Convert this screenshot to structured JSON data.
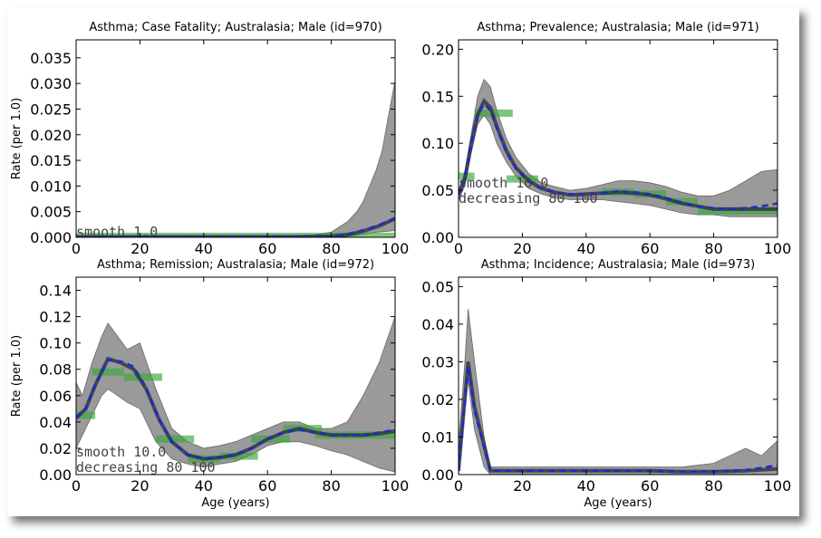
{
  "chart_data": [
    {
      "type": "line",
      "title": "Asthma; Case Fatality; Australasia; Male (id=970)",
      "xlabel": "",
      "ylabel": "Rate (per 1.0)",
      "xlim": [
        0,
        100
      ],
      "ylim": [
        0,
        0.0385
      ],
      "xticks": [
        0,
        20,
        40,
        60,
        80,
        100
      ],
      "xtick_labels": [
        "0",
        "20",
        "40",
        "60",
        "80",
        "100"
      ],
      "yticks": [
        0,
        0.005,
        0.01,
        0.015,
        0.02,
        0.025,
        0.03,
        0.035
      ],
      "ytick_labels": [
        "0.000",
        "0.005",
        "0.010",
        "0.015",
        "0.020",
        "0.025",
        "0.030",
        "0.035"
      ],
      "annotation": [
        "smooth 1.0"
      ],
      "band": {
        "x": [
          0,
          60,
          70,
          75,
          80,
          85,
          88,
          90,
          92,
          94,
          96,
          98,
          100
        ],
        "upper": [
          0.0002,
          0.0002,
          0.0003,
          0.0005,
          0.001,
          0.003,
          0.005,
          0.007,
          0.01,
          0.013,
          0.017,
          0.024,
          0.0305
        ],
        "lower": [
          0,
          0,
          0,
          0,
          0.0001,
          0.0002,
          0.0004,
          0.0006,
          0.0008,
          0.001,
          0.0011,
          0.0012,
          0.0013
        ]
      },
      "median": {
        "x": [
          0,
          70,
          80,
          85,
          90,
          95,
          100
        ],
        "y": [
          0.0001,
          0.0001,
          0.0002,
          0.0005,
          0.0012,
          0.0022,
          0.0036
        ]
      },
      "mean": {
        "x": [
          0,
          70,
          80,
          85,
          90,
          95,
          100
        ],
        "y": [
          0.0001,
          0.0001,
          0.0002,
          0.0006,
          0.0014,
          0.0024,
          0.0038
        ]
      },
      "data_bars": [
        {
          "x0": 0,
          "x1": 100,
          "y": 0.0002
        }
      ]
    },
    {
      "type": "line",
      "title": "Asthma; Prevalence; Australasia; Male (id=971)",
      "xlabel": "",
      "ylabel": "",
      "xlim": [
        0,
        100
      ],
      "ylim": [
        0,
        0.21
      ],
      "xticks": [
        0,
        20,
        40,
        60,
        80,
        100
      ],
      "xtick_labels": [
        "0",
        "20",
        "40",
        "60",
        "80",
        "100"
      ],
      "yticks": [
        0,
        0.05,
        0.1,
        0.15,
        0.2
      ],
      "ytick_labels": [
        "0.00",
        "0.05",
        "0.10",
        "0.15",
        "0.20"
      ],
      "annotation": [
        "smooth 10.0",
        "decreasing 80 100",
        ""
      ],
      "band": {
        "x": [
          0,
          2,
          4,
          6,
          8,
          10,
          12,
          15,
          18,
          22,
          26,
          30,
          35,
          40,
          45,
          50,
          55,
          60,
          65,
          70,
          75,
          80,
          85,
          90,
          95,
          100
        ],
        "upper": [
          0.05,
          0.07,
          0.11,
          0.15,
          0.168,
          0.16,
          0.135,
          0.105,
          0.085,
          0.068,
          0.058,
          0.054,
          0.05,
          0.052,
          0.056,
          0.06,
          0.06,
          0.058,
          0.054,
          0.048,
          0.044,
          0.044,
          0.05,
          0.06,
          0.07,
          0.072
        ],
        "lower": [
          0.04,
          0.055,
          0.09,
          0.12,
          0.13,
          0.12,
          0.1,
          0.08,
          0.065,
          0.052,
          0.046,
          0.042,
          0.04,
          0.04,
          0.04,
          0.038,
          0.036,
          0.034,
          0.03,
          0.026,
          0.024,
          0.024,
          0.022,
          0.022,
          0.022,
          0.022
        ]
      },
      "median": {
        "x": [
          0,
          2,
          4,
          6,
          8,
          10,
          12,
          15,
          18,
          22,
          26,
          30,
          35,
          40,
          45,
          50,
          55,
          60,
          65,
          70,
          75,
          80,
          85,
          90,
          95,
          100
        ],
        "y": [
          0.045,
          0.062,
          0.1,
          0.13,
          0.145,
          0.138,
          0.118,
          0.092,
          0.074,
          0.06,
          0.052,
          0.048,
          0.045,
          0.046,
          0.047,
          0.048,
          0.047,
          0.045,
          0.041,
          0.036,
          0.033,
          0.03,
          0.03,
          0.03,
          0.03,
          0.03
        ]
      },
      "mean": {
        "x": [
          0,
          2,
          4,
          6,
          8,
          10,
          12,
          15,
          18,
          22,
          26,
          30,
          35,
          40,
          45,
          50,
          55,
          60,
          65,
          70,
          75,
          80,
          85,
          90,
          95,
          100
        ],
        "y": [
          0.045,
          0.062,
          0.1,
          0.13,
          0.142,
          0.135,
          0.116,
          0.09,
          0.073,
          0.06,
          0.052,
          0.048,
          0.046,
          0.046,
          0.047,
          0.049,
          0.048,
          0.046,
          0.042,
          0.037,
          0.033,
          0.031,
          0.03,
          0.031,
          0.033,
          0.036
        ]
      },
      "data_bars": [
        {
          "x0": 0,
          "x1": 5,
          "y": 0.065
        },
        {
          "x0": 5,
          "x1": 17,
          "y": 0.132
        },
        {
          "x0": 15,
          "x1": 25,
          "y": 0.062
        },
        {
          "x0": 45,
          "x1": 55,
          "y": 0.048
        },
        {
          "x0": 55,
          "x1": 65,
          "y": 0.046
        },
        {
          "x0": 65,
          "x1": 75,
          "y": 0.038
        },
        {
          "x0": 75,
          "x1": 100,
          "y": 0.028
        }
      ]
    },
    {
      "type": "line",
      "title": "Asthma; Remission; Australasia; Male (id=972)",
      "xlabel": "Age (years)",
      "ylabel": "Rate (per 1.0)",
      "xlim": [
        0,
        100
      ],
      "ylim": [
        0,
        0.15
      ],
      "xticks": [
        0,
        20,
        40,
        60,
        80,
        100
      ],
      "xtick_labels": [
        "0",
        "20",
        "40",
        "60",
        "80",
        "100"
      ],
      "yticks": [
        0,
        0.02,
        0.04,
        0.06,
        0.08,
        0.1,
        0.12,
        0.14
      ],
      "ytick_labels": [
        "0.00",
        "0.02",
        "0.04",
        "0.06",
        "0.08",
        "0.10",
        "0.12",
        "0.14"
      ],
      "annotation": [
        "smooth 10.0",
        "decreasing 80 100"
      ],
      "band": {
        "x": [
          0,
          2,
          5,
          8,
          10,
          13,
          16,
          20,
          25,
          30,
          35,
          40,
          45,
          50,
          55,
          60,
          65,
          70,
          75,
          80,
          85,
          90,
          95,
          100
        ],
        "upper": [
          0.07,
          0.06,
          0.085,
          0.105,
          0.115,
          0.105,
          0.095,
          0.1,
          0.065,
          0.035,
          0.025,
          0.02,
          0.022,
          0.025,
          0.03,
          0.035,
          0.04,
          0.04,
          0.035,
          0.035,
          0.04,
          0.06,
          0.085,
          0.12
        ],
        "lower": [
          0.02,
          0.03,
          0.045,
          0.06,
          0.065,
          0.06,
          0.055,
          0.05,
          0.025,
          0.012,
          0.008,
          0.006,
          0.008,
          0.01,
          0.015,
          0.022,
          0.025,
          0.025,
          0.022,
          0.018,
          0.015,
          0.01,
          0.005,
          0.002
        ]
      },
      "median": {
        "x": [
          0,
          3,
          6,
          10,
          14,
          18,
          22,
          26,
          30,
          35,
          40,
          45,
          50,
          55,
          60,
          65,
          70,
          75,
          80,
          85,
          90,
          95,
          100
        ],
        "y": [
          0.043,
          0.05,
          0.068,
          0.088,
          0.085,
          0.08,
          0.065,
          0.042,
          0.025,
          0.015,
          0.012,
          0.013,
          0.015,
          0.02,
          0.027,
          0.032,
          0.035,
          0.032,
          0.03,
          0.03,
          0.03,
          0.031,
          0.033
        ]
      },
      "mean": {
        "x": [
          0,
          3,
          6,
          10,
          14,
          18,
          22,
          26,
          30,
          35,
          40,
          45,
          50,
          55,
          60,
          65,
          70,
          75,
          80,
          85,
          90,
          95,
          100
        ],
        "y": [
          0.043,
          0.05,
          0.068,
          0.087,
          0.086,
          0.082,
          0.066,
          0.042,
          0.025,
          0.015,
          0.012,
          0.013,
          0.015,
          0.02,
          0.027,
          0.032,
          0.034,
          0.032,
          0.03,
          0.03,
          0.03,
          0.032,
          0.034
        ]
      },
      "data_bars": [
        {
          "x0": 0,
          "x1": 6,
          "y": 0.045
        },
        {
          "x0": 5,
          "x1": 15,
          "y": 0.078
        },
        {
          "x0": 15,
          "x1": 27,
          "y": 0.074
        },
        {
          "x0": 25,
          "x1": 37,
          "y": 0.027
        },
        {
          "x0": 35,
          "x1": 45,
          "y": 0.012
        },
        {
          "x0": 45,
          "x1": 57,
          "y": 0.014
        },
        {
          "x0": 55,
          "x1": 67,
          "y": 0.027
        },
        {
          "x0": 65,
          "x1": 77,
          "y": 0.035
        },
        {
          "x0": 75,
          "x1": 100,
          "y": 0.03
        }
      ]
    },
    {
      "type": "line",
      "title": "Asthma; Incidence; Australasia; Male (id=973)",
      "xlabel": "Age (years)",
      "ylabel": "",
      "xlim": [
        0,
        100
      ],
      "ylim": [
        0,
        0.0525
      ],
      "xticks": [
        0,
        20,
        40,
        60,
        80,
        100
      ],
      "xtick_labels": [
        "0",
        "20",
        "40",
        "60",
        "80",
        "100"
      ],
      "yticks": [
        0,
        0.01,
        0.02,
        0.03,
        0.04,
        0.05
      ],
      "ytick_labels": [
        "0.00",
        "0.01",
        "0.02",
        "0.03",
        "0.04",
        "0.05"
      ],
      "annotation": [],
      "band": {
        "x": [
          0,
          2,
          3,
          5,
          8,
          10,
          20,
          40,
          60,
          70,
          80,
          85,
          90,
          95,
          100
        ],
        "upper": [
          0.008,
          0.03,
          0.044,
          0.03,
          0.01,
          0.002,
          0.002,
          0.002,
          0.002,
          0.002,
          0.003,
          0.005,
          0.007,
          0.005,
          0.009
        ],
        "lower": [
          0.0,
          0.018,
          0.025,
          0.012,
          0.002,
          0.0,
          0.0,
          0.0,
          0.0,
          0.0,
          0.0,
          0.0,
          0.0,
          0.0,
          0.0
        ]
      },
      "median": {
        "x": [
          0,
          3,
          5,
          10,
          20,
          40,
          60,
          70,
          80,
          90,
          100
        ],
        "y": [
          0.001,
          0.03,
          0.018,
          0.001,
          0.001,
          0.001,
          0.001,
          0.0008,
          0.0008,
          0.001,
          0.0015
        ]
      },
      "mean": {
        "x": [
          0,
          3,
          5,
          10,
          20,
          40,
          60,
          70,
          80,
          90,
          95,
          100
        ],
        "y": [
          0.001,
          0.029,
          0.017,
          0.001,
          0.001,
          0.001,
          0.001,
          0.0008,
          0.0009,
          0.0012,
          0.0018,
          0.0025
        ]
      },
      "data_bars": []
    }
  ],
  "colors": {
    "band": "#9a9a9a",
    "median": "#2a2a3a",
    "mean": "#1a2bcc",
    "data": "#3aa63a"
  }
}
